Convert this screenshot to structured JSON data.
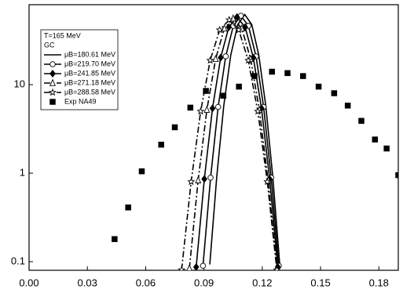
{
  "chart_data": {
    "type": "line",
    "log_y": true,
    "legend_title": [
      "T=165 MeV",
      "GC"
    ],
    "xlim": [
      0,
      0.19
    ],
    "ylim": [
      0.08,
      80
    ],
    "xticks": [
      {
        "value": 0,
        "label": "0.00"
      },
      {
        "value": 0.03,
        "label": "0.03"
      },
      {
        "value": 0.06,
        "label": "0.06"
      },
      {
        "value": 0.09,
        "label": "0.09"
      },
      {
        "value": 0.12,
        "label": "0.12"
      },
      {
        "value": 0.15,
        "label": "0.15"
      },
      {
        "value": 0.18,
        "label": "0.18"
      }
    ],
    "yticks": [
      0.1,
      1,
      10
    ],
    "series": [
      {
        "name": "μB=180.61 MeV",
        "color": "#000000",
        "marker": "none",
        "dash": "solid",
        "x": [
          0.093,
          0.0966,
          0.1002,
          0.1038,
          0.1074,
          0.111,
          0.1146,
          0.1182,
          0.1218,
          0.1254,
          0.129
        ],
        "values": [
          0.093,
          0.92,
          5.8,
          21.6,
          47.7,
          62,
          47.7,
          21.6,
          5.8,
          0.92,
          0.093
        ]
      },
      {
        "name": "μB=219.70 MeV",
        "color": "#000000",
        "marker": "circle",
        "dash": "solid",
        "x": [
          0.0895,
          0.0934,
          0.0973,
          0.1012,
          0.1051,
          0.109,
          0.1129,
          0.1168,
          0.1207,
          0.1246,
          0.1285
        ],
        "values": [
          0.09,
          0.89,
          5.6,
          20.9,
          46.1,
          60,
          46.1,
          20.9,
          5.6,
          0.89,
          0.09
        ]
      },
      {
        "name": "μB=241.85 MeV",
        "color": "#000000",
        "marker": "diamond",
        "dash": "solid",
        "x": [
          0.086,
          0.0902,
          0.0944,
          0.0986,
          0.1028,
          0.107,
          0.1112,
          0.1154,
          0.1196,
          0.1238,
          0.128
        ],
        "values": [
          0.087,
          0.86,
          5.4,
          20.2,
          44.6,
          58,
          44.6,
          20.2,
          5.4,
          0.86,
          0.087
        ]
      },
      {
        "name": "μB=271.18 MeV",
        "color": "#000000",
        "marker": "triangle",
        "dash": "dashdot",
        "x": [
          0.0825,
          0.087,
          0.0915,
          0.096,
          0.1005,
          0.105,
          0.1095,
          0.114,
          0.1185,
          0.123,
          0.1275
        ],
        "values": [
          0.084,
          0.83,
          5.2,
          19.5,
          43.1,
          56,
          43.1,
          19.5,
          5.2,
          0.83,
          0.084
        ]
      },
      {
        "name": "μB=288.58 MeV",
        "color": "#000000",
        "marker": "star",
        "dash": "dashdot",
        "x": [
          0.0785,
          0.0834,
          0.0883,
          0.0932,
          0.0981,
          0.103,
          0.1079,
          0.1128,
          0.1177,
          0.1226,
          0.1275
        ],
        "values": [
          0.081,
          0.8,
          5.0,
          18.8,
          41.5,
          54,
          41.5,
          18.8,
          5.0,
          0.8,
          0.081
        ]
      },
      {
        "name": "Exp NA49",
        "color": "#000000",
        "marker": "square",
        "dash": "none",
        "x": [
          0.044,
          0.051,
          0.058,
          0.068,
          0.075,
          0.083,
          0.091,
          0.1,
          0.108,
          0.116,
          0.125,
          0.133,
          0.141,
          0.149,
          0.157,
          0.164,
          0.171,
          0.178,
          0.184,
          0.19
        ],
        "values": [
          0.18,
          0.41,
          1.05,
          2.1,
          3.3,
          5.5,
          8.5,
          7.5,
          9.5,
          12.5,
          14,
          13.5,
          12.5,
          9.5,
          8,
          5.8,
          3.9,
          2.4,
          1.9,
          0.95
        ]
      }
    ]
  }
}
